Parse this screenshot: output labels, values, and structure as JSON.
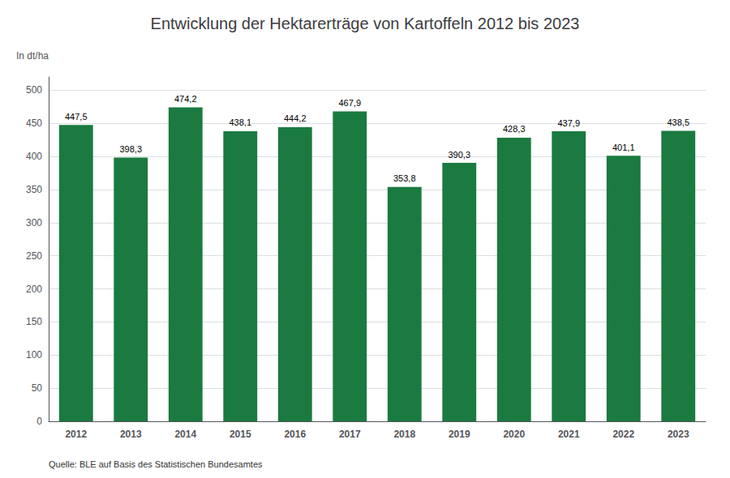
{
  "chart_data": {
    "type": "bar",
    "title": "Entwicklung der Hektarerträge von Kartoffeln 2012 bis 2023",
    "ylabel": "In dt/ha",
    "annotations": [
      "Quelle: BLE auf Basis des Statistischen Bundesamtes"
    ],
    "categories": [
      "2012",
      "2013",
      "2014",
      "2015",
      "2016",
      "2017",
      "2018",
      "2019",
      "2020",
      "2021",
      "2022",
      "2023"
    ],
    "values": [
      447.5,
      398.3,
      474.2,
      438.1,
      444.2,
      467.9,
      353.8,
      390.3,
      428.3,
      437.9,
      401.1,
      438.5
    ],
    "value_labels": [
      "447,5",
      "398,3",
      "474,2",
      "438,1",
      "444,2",
      "467,9",
      "353,8",
      "390,3",
      "428,3",
      "437,9",
      "401,1",
      "438,5"
    ],
    "data_labels": true,
    "color": "#1a7a40",
    "ylim": [
      0,
      520
    ],
    "yticks": [
      0,
      50,
      100,
      150,
      200,
      250,
      300,
      350,
      400,
      450,
      500
    ],
    "grid": true
  }
}
